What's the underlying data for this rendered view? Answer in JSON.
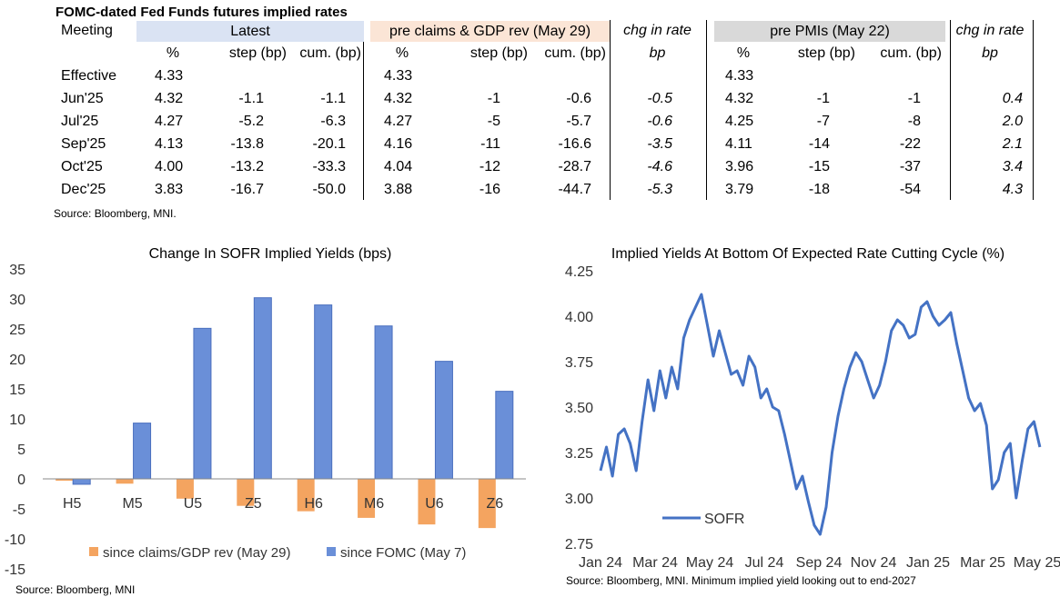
{
  "table": {
    "title": "FOMC-dated Fed Funds futures implied rates",
    "meeting_header": "Meeting",
    "group_headers": [
      "Latest",
      "pre claims & GDP rev (May 29)",
      "chg in rate",
      "pre PMIs (May 22)",
      "chg in rate"
    ],
    "sub_headers": [
      "%",
      "step (bp)",
      "cum. (bp)",
      "%",
      "step (bp)",
      "cum. (bp)",
      "bp",
      "%",
      "step (bp)",
      "cum. (bp)",
      "bp"
    ],
    "header_colors": {
      "latest": "#dae3f3",
      "pre_claims": "#fbe5d6",
      "pre_pmis": "#d9d9d9"
    },
    "rows": [
      {
        "meeting": "Effective",
        "latest_pct": "4.33",
        "latest_step": "",
        "latest_cum": "",
        "claims_pct": "4.33",
        "claims_step": "",
        "claims_cum": "",
        "chg1": "",
        "pmi_pct": "4.33",
        "pmi_step": "",
        "pmi_cum": "",
        "chg2": ""
      },
      {
        "meeting": "Jun'25",
        "latest_pct": "4.32",
        "latest_step": "-1.1",
        "latest_cum": "-1.1",
        "claims_pct": "4.32",
        "claims_step": "-1",
        "claims_cum": "-0.6",
        "chg1": "-0.5",
        "pmi_pct": "4.32",
        "pmi_step": "-1",
        "pmi_cum": "-1",
        "chg2": "0.4"
      },
      {
        "meeting": "Jul'25",
        "latest_pct": "4.27",
        "latest_step": "-5.2",
        "latest_cum": "-6.3",
        "claims_pct": "4.27",
        "claims_step": "-5",
        "claims_cum": "-5.7",
        "chg1": "-0.6",
        "pmi_pct": "4.25",
        "pmi_step": "-7",
        "pmi_cum": "-8",
        "chg2": "2.0"
      },
      {
        "meeting": "Sep'25",
        "latest_pct": "4.13",
        "latest_step": "-13.8",
        "latest_cum": "-20.1",
        "claims_pct": "4.16",
        "claims_step": "-11",
        "claims_cum": "-16.6",
        "chg1": "-3.5",
        "pmi_pct": "4.11",
        "pmi_step": "-14",
        "pmi_cum": "-22",
        "chg2": "2.1"
      },
      {
        "meeting": "Oct'25",
        "latest_pct": "4.00",
        "latest_step": "-13.2",
        "latest_cum": "-33.3",
        "claims_pct": "4.04",
        "claims_step": "-12",
        "claims_cum": "-28.7",
        "chg1": "-4.6",
        "pmi_pct": "3.96",
        "pmi_step": "-15",
        "pmi_cum": "-37",
        "chg2": "3.4"
      },
      {
        "meeting": "Dec'25",
        "latest_pct": "3.83",
        "latest_step": "-16.7",
        "latest_cum": "-50.0",
        "claims_pct": "3.88",
        "claims_step": "-16",
        "claims_cum": "-44.7",
        "chg1": "-5.3",
        "pmi_pct": "3.79",
        "pmi_step": "-18",
        "pmi_cum": "-54",
        "chg2": "4.3"
      }
    ],
    "source": "Source: Bloomberg, MNI."
  },
  "chart_data": [
    {
      "type": "bar",
      "title": "Change In SOFR Implied Yields (bps)",
      "categories": [
        "H5",
        "M5",
        "U5",
        "Z5",
        "H6",
        "M6",
        "U6",
        "Z6"
      ],
      "series": [
        {
          "name": "since claims/GDP rev (May 29)",
          "color": "#f4a460",
          "values": [
            -0.3,
            -0.8,
            -3.3,
            -4.5,
            -5.4,
            -6.5,
            -7.6,
            -8.2
          ]
        },
        {
          "name": "since FOMC (May 7)",
          "color": "#6a8fd8",
          "values": [
            -0.9,
            9.3,
            25.1,
            30.2,
            29.0,
            25.5,
            19.6,
            14.6
          ]
        }
      ],
      "ylim": [
        -15,
        35
      ],
      "yticks": [
        -15,
        -10,
        -5,
        0,
        5,
        10,
        15,
        20,
        25,
        30,
        35
      ],
      "grid": false,
      "legend": "bottom",
      "source": "Source: Bloomberg, MNI"
    },
    {
      "type": "line",
      "title": "Implied Yields At Bottom Of Expected Rate Cutting Cycle (%)",
      "series": [
        {
          "name": "SOFR",
          "color": "#4472c4",
          "x": [
            "2024-01-01",
            "2024-01-08",
            "2024-01-15",
            "2024-01-22",
            "2024-01-29",
            "2024-02-05",
            "2024-02-12",
            "2024-02-19",
            "2024-02-26",
            "2024-03-04",
            "2024-03-11",
            "2024-03-18",
            "2024-03-25",
            "2024-04-01",
            "2024-04-08",
            "2024-04-15",
            "2024-04-22",
            "2024-04-29",
            "2024-05-06",
            "2024-05-13",
            "2024-05-20",
            "2024-05-27",
            "2024-06-03",
            "2024-06-10",
            "2024-06-17",
            "2024-06-24",
            "2024-07-01",
            "2024-07-08",
            "2024-07-15",
            "2024-07-22",
            "2024-07-29",
            "2024-08-05",
            "2024-08-12",
            "2024-08-19",
            "2024-08-26",
            "2024-09-02",
            "2024-09-09",
            "2024-09-16",
            "2024-09-23",
            "2024-09-30",
            "2024-10-07",
            "2024-10-14",
            "2024-10-21",
            "2024-10-28",
            "2024-11-04",
            "2024-11-11",
            "2024-11-18",
            "2024-11-25",
            "2024-12-02",
            "2024-12-09",
            "2024-12-16",
            "2024-12-23",
            "2024-12-30",
            "2025-01-06",
            "2025-01-13",
            "2025-01-20",
            "2025-01-27",
            "2025-02-03",
            "2025-02-10",
            "2025-02-17",
            "2025-02-24",
            "2025-03-03",
            "2025-03-10",
            "2025-03-17",
            "2025-03-24",
            "2025-03-31",
            "2025-04-07",
            "2025-04-14",
            "2025-04-21",
            "2025-04-28",
            "2025-05-05",
            "2025-05-12",
            "2025-05-19",
            "2025-05-26",
            "2025-06-02"
          ],
          "y": [
            3.15,
            3.28,
            3.12,
            3.35,
            3.38,
            3.3,
            3.15,
            3.42,
            3.65,
            3.48,
            3.7,
            3.55,
            3.72,
            3.6,
            3.88,
            3.98,
            4.05,
            4.12,
            3.95,
            3.78,
            3.92,
            3.8,
            3.68,
            3.7,
            3.62,
            3.78,
            3.72,
            3.55,
            3.6,
            3.5,
            3.48,
            3.35,
            3.2,
            3.05,
            3.12,
            2.98,
            2.85,
            2.8,
            2.95,
            3.25,
            3.45,
            3.6,
            3.72,
            3.8,
            3.75,
            3.65,
            3.55,
            3.62,
            3.75,
            3.92,
            3.98,
            3.95,
            3.88,
            3.9,
            4.05,
            4.08,
            4.0,
            3.95,
            3.98,
            4.02,
            3.85,
            3.7,
            3.55,
            3.48,
            3.52,
            3.4,
            3.05,
            3.1,
            3.25,
            3.3,
            3.0,
            3.2,
            3.38,
            3.42,
            3.28
          ]
        }
      ],
      "xticks": [
        "Jan 24",
        "Mar 24",
        "May 24",
        "Jul 24",
        "Sep 24",
        "Nov 24",
        "Jan 25",
        "Mar 25",
        "May 25"
      ],
      "ylim": [
        2.75,
        4.25
      ],
      "yticks": [
        2.75,
        3.0,
        3.25,
        3.5,
        3.75,
        4.0,
        4.25
      ],
      "grid": false,
      "legend": "bottom-left",
      "source": "Source: Bloomberg, MNI. Minimum implied yield looking out to end-2027"
    }
  ]
}
